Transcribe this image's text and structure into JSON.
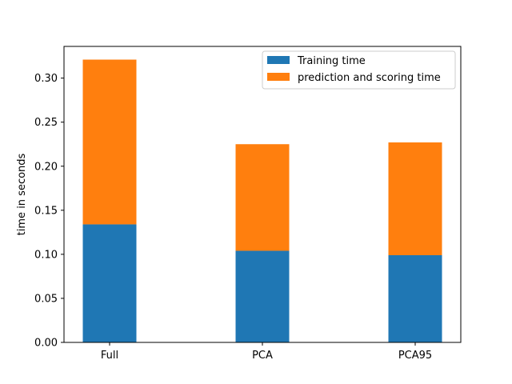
{
  "chart_data": {
    "type": "bar",
    "stacked": true,
    "categories": [
      "Full",
      "PCA",
      "PCA95"
    ],
    "series": [
      {
        "name": "Training time",
        "values": [
          0.134,
          0.104,
          0.099
        ],
        "color": "#1f77b4"
      },
      {
        "name": "prediction and scoring time",
        "values": [
          0.187,
          0.121,
          0.128
        ],
        "color": "#ff7f0e"
      }
    ],
    "ylabel": "time in seconds",
    "xlabel": "",
    "ylim": [
      0,
      0.336
    ],
    "yticks": [
      "0.00",
      "0.05",
      "0.10",
      "0.15",
      "0.20",
      "0.25",
      "0.30"
    ],
    "grid": false,
    "legend_position": "top-right"
  }
}
